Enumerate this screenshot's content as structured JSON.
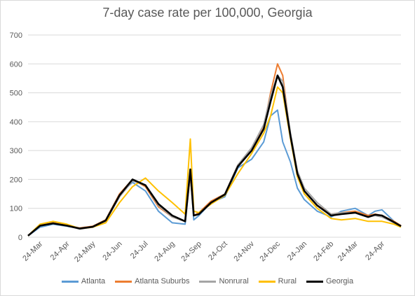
{
  "chart_data": {
    "type": "line",
    "title": "7-day case rate per 100,000, Georgia",
    "xlabel": "",
    "ylabel": "",
    "ylim": [
      0,
      700
    ],
    "yticks": [
      "0",
      "100",
      "200",
      "300",
      "400",
      "500",
      "600",
      "700"
    ],
    "xticks": [
      "24-Mar",
      "24-Apr",
      "24-May",
      "24-Jun",
      "24-Jul",
      "24-Aug",
      "24-Sep",
      "24-Oct",
      "24-Nov",
      "24-Dec",
      "24-Jan",
      "24-Feb",
      "24-Mar",
      "24-Apr"
    ],
    "grid": true,
    "legend": "bottom",
    "x": [
      "2020-03-10",
      "2020-03-24",
      "2020-04-08",
      "2020-04-24",
      "2020-05-09",
      "2020-05-24",
      "2020-06-08",
      "2020-06-24",
      "2020-07-09",
      "2020-07-24",
      "2020-08-08",
      "2020-08-24",
      "2020-09-08",
      "2020-09-14",
      "2020-09-18",
      "2020-09-24",
      "2020-10-08",
      "2020-10-24",
      "2020-11-08",
      "2020-11-24",
      "2020-12-08",
      "2020-12-16",
      "2020-12-24",
      "2020-12-30",
      "2021-01-08",
      "2021-01-16",
      "2021-01-24",
      "2021-02-08",
      "2021-02-24",
      "2021-03-08",
      "2021-03-24",
      "2021-04-08",
      "2021-04-16",
      "2021-04-24",
      "2021-05-08",
      "2021-05-16"
    ],
    "series": [
      {
        "name": "Atlanta",
        "color": "#5b9bd5",
        "values": [
          5,
          35,
          45,
          38,
          30,
          38,
          60,
          150,
          190,
          160,
          90,
          50,
          45,
          220,
          60,
          75,
          120,
          140,
          240,
          270,
          330,
          420,
          440,
          330,
          260,
          170,
          130,
          90,
          70,
          90,
          100,
          75,
          90,
          95,
          55,
          40
        ]
      },
      {
        "name": "Atlanta Suburbs",
        "color": "#ed7d31",
        "values": [
          5,
          40,
          50,
          40,
          32,
          38,
          60,
          150,
          200,
          175,
          105,
          70,
          55,
          215,
          75,
          85,
          125,
          150,
          250,
          300,
          380,
          500,
          600,
          560,
          350,
          220,
          160,
          110,
          80,
          85,
          90,
          75,
          80,
          75,
          55,
          40
        ]
      },
      {
        "name": "Nonrural",
        "color": "#a5a5a5",
        "values": [
          5,
          40,
          48,
          40,
          28,
          35,
          55,
          140,
          195,
          180,
          110,
          70,
          55,
          220,
          75,
          80,
          120,
          150,
          250,
          310,
          390,
          490,
          560,
          540,
          360,
          230,
          170,
          120,
          80,
          85,
          85,
          70,
          75,
          70,
          50,
          38
        ]
      },
      {
        "name": "Rural",
        "color": "#ffc000",
        "values": [
          5,
          45,
          55,
          45,
          30,
          35,
          50,
          120,
          175,
          205,
          160,
          120,
          80,
          340,
          90,
          85,
          115,
          145,
          220,
          290,
          360,
          420,
          520,
          500,
          340,
          210,
          150,
          100,
          65,
          60,
          65,
          55,
          55,
          55,
          45,
          35
        ]
      },
      {
        "name": "Georgia",
        "color": "#000000",
        "values": [
          5,
          40,
          48,
          40,
          30,
          36,
          58,
          145,
          200,
          180,
          115,
          75,
          55,
          235,
          75,
          80,
          120,
          148,
          245,
          300,
          375,
          470,
          560,
          520,
          350,
          220,
          160,
          110,
          75,
          80,
          85,
          70,
          78,
          75,
          52,
          38
        ]
      }
    ]
  }
}
